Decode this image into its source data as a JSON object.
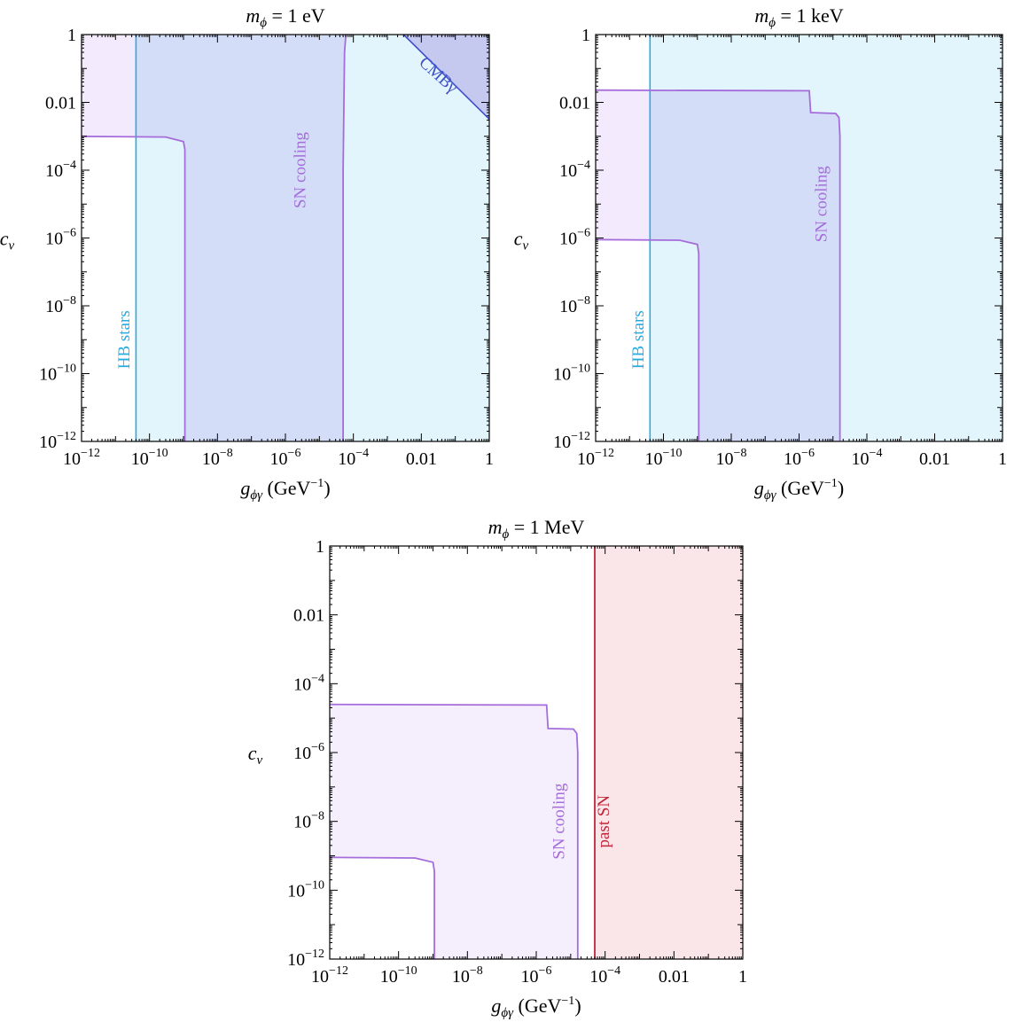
{
  "chart_data": [
    {
      "type": "area",
      "title": {
        "var": "m",
        "sub": "ϕ",
        "rest": " = 1 eV"
      },
      "xlabel": {
        "var": "g",
        "sub": "ϕγ",
        "unit": " (GeV",
        "exp": "−1",
        "close": ")"
      },
      "ylabel": {
        "var": "c",
        "sub": "ν"
      },
      "xscale": "log",
      "yscale": "log",
      "xlim": [
        1e-12,
        1
      ],
      "ylim": [
        1e-12,
        1
      ],
      "x_tick_labels": [
        "10^-12",
        "10^-10",
        "10^-8",
        "10^-6",
        "10^-4",
        "0.01",
        "1"
      ],
      "y_tick_labels": [
        "10^-12",
        "10^-10",
        "10^-8",
        "10^-6",
        "10^-4",
        "0.01",
        "1"
      ],
      "regions": [
        {
          "label": "HB stars",
          "color": "#29abe2",
          "fill": "#e3f5fc",
          "boundary": [
            [
              4e-11,
              1e-12
            ],
            [
              4e-11,
              1
            ]
          ],
          "label_at": [
            2e-11,
            1e-09
          ]
        },
        {
          "label": "SN cooling",
          "color": "#a56ddb",
          "fill": "#ede3fb",
          "boundary": [
            [
              1e-12,
              0.001
            ],
            [
              3e-10,
              0.00095
            ],
            [
              1e-09,
              0.0007
            ],
            [
              1.1e-09,
              0.0004
            ],
            [
              1.1e-09,
              1e-12
            ]
          ],
          "upper_boundary": [
            [
              5e-05,
              1e-12
            ],
            [
              5e-05,
              0.0001
            ],
            [
              5.5e-05,
              0.3
            ],
            [
              6e-05,
              1
            ]
          ],
          "label_at": [
            3e-06,
            0.0001
          ]
        },
        {
          "label": "CMBγ",
          "color": "#3f50c8",
          "fill": "#c5c9f0",
          "boundary": [
            [
              0.003,
              1
            ],
            [
              1,
              0.0032
            ]
          ],
          "label_at": [
            0.03,
            0.06
          ]
        }
      ]
    },
    {
      "type": "area",
      "title": {
        "var": "m",
        "sub": "ϕ",
        "rest": " = 1 keV"
      },
      "xlabel": {
        "var": "g",
        "sub": "ϕγ",
        "unit": " (GeV",
        "exp": "−1",
        "close": ")"
      },
      "ylabel": {
        "var": "c",
        "sub": "ν"
      },
      "xscale": "log",
      "yscale": "log",
      "xlim": [
        1e-12,
        1
      ],
      "ylim": [
        1e-12,
        1
      ],
      "x_tick_labels": [
        "10^-12",
        "10^-10",
        "10^-8",
        "10^-6",
        "10^-4",
        "0.01",
        "1"
      ],
      "y_tick_labels": [
        "10^-12",
        "10^-10",
        "10^-8",
        "10^-6",
        "10^-4",
        "0.01",
        "1"
      ],
      "regions": [
        {
          "label": "HB stars",
          "color": "#29abe2",
          "fill": "#e3f5fc",
          "boundary": [
            [
              4e-11,
              1e-12
            ],
            [
              4e-11,
              1
            ]
          ],
          "label_at": [
            2e-11,
            1e-09
          ]
        },
        {
          "label": "SN cooling",
          "color": "#a56ddb",
          "fill": "#ede3fb",
          "boundary": [
            [
              1e-12,
              9e-07
            ],
            [
              3e-10,
              8.6e-07
            ],
            [
              1e-09,
              6.5e-07
            ],
            [
              1.1e-09,
              3.5e-07
            ],
            [
              1.1e-09,
              1e-12
            ]
          ],
          "upper_boundary": [
            [
              1e-12,
              0.023
            ],
            [
              2e-06,
              0.022
            ],
            [
              2.2e-06,
              0.005
            ],
            [
              1.2e-05,
              0.0047
            ],
            [
              1.5e-05,
              0.0036
            ],
            [
              1.6e-05,
              0.001
            ],
            [
              1.6e-05,
              1e-12
            ]
          ],
          "label_at": [
            5e-06,
            1e-05
          ]
        }
      ]
    },
    {
      "type": "area",
      "title": {
        "var": "m",
        "sub": "ϕ",
        "rest": " = 1 MeV"
      },
      "xlabel": {
        "var": "g",
        "sub": "ϕγ",
        "unit": " (GeV",
        "exp": "−1",
        "close": ")"
      },
      "ylabel": {
        "var": "c",
        "sub": "ν"
      },
      "xscale": "log",
      "yscale": "log",
      "xlim": [
        1e-12,
        1
      ],
      "ylim": [
        1e-12,
        1
      ],
      "x_tick_labels": [
        "10^-12",
        "10^-10",
        "10^-8",
        "10^-6",
        "10^-4",
        "0.01",
        "1"
      ],
      "y_tick_labels": [
        "10^-12",
        "10^-10",
        "10^-8",
        "10^-6",
        "10^-4",
        "0.01",
        "1"
      ],
      "regions": [
        {
          "label": "SN cooling",
          "color": "#a56ddb",
          "fill": "#f5eefd",
          "boundary": [
            [
              1e-12,
              9e-10
            ],
            [
              3e-10,
              8.6e-10
            ],
            [
              1e-09,
              6.5e-10
            ],
            [
              1.1e-09,
              3.5e-10
            ],
            [
              1.1e-09,
              1e-12
            ]
          ],
          "upper_boundary": [
            [
              1e-12,
              2.5e-05
            ],
            [
              2e-06,
              2.4e-05
            ],
            [
              2.2e-06,
              5e-06
            ],
            [
              1.2e-05,
              4.8e-06
            ],
            [
              1.5e-05,
              3.6e-06
            ],
            [
              1.6e-05,
              1e-06
            ],
            [
              1.6e-05,
              1e-12
            ]
          ],
          "label_at": [
            5e-06,
            1e-08
          ]
        },
        {
          "label": "past SN",
          "color": "#c0253a",
          "fill": "#fae6e9",
          "boundary": [
            [
              5e-05,
              1e-12
            ],
            [
              5e-05,
              1
            ]
          ],
          "label_at": [
            0.0001,
            1e-08
          ]
        }
      ]
    }
  ]
}
